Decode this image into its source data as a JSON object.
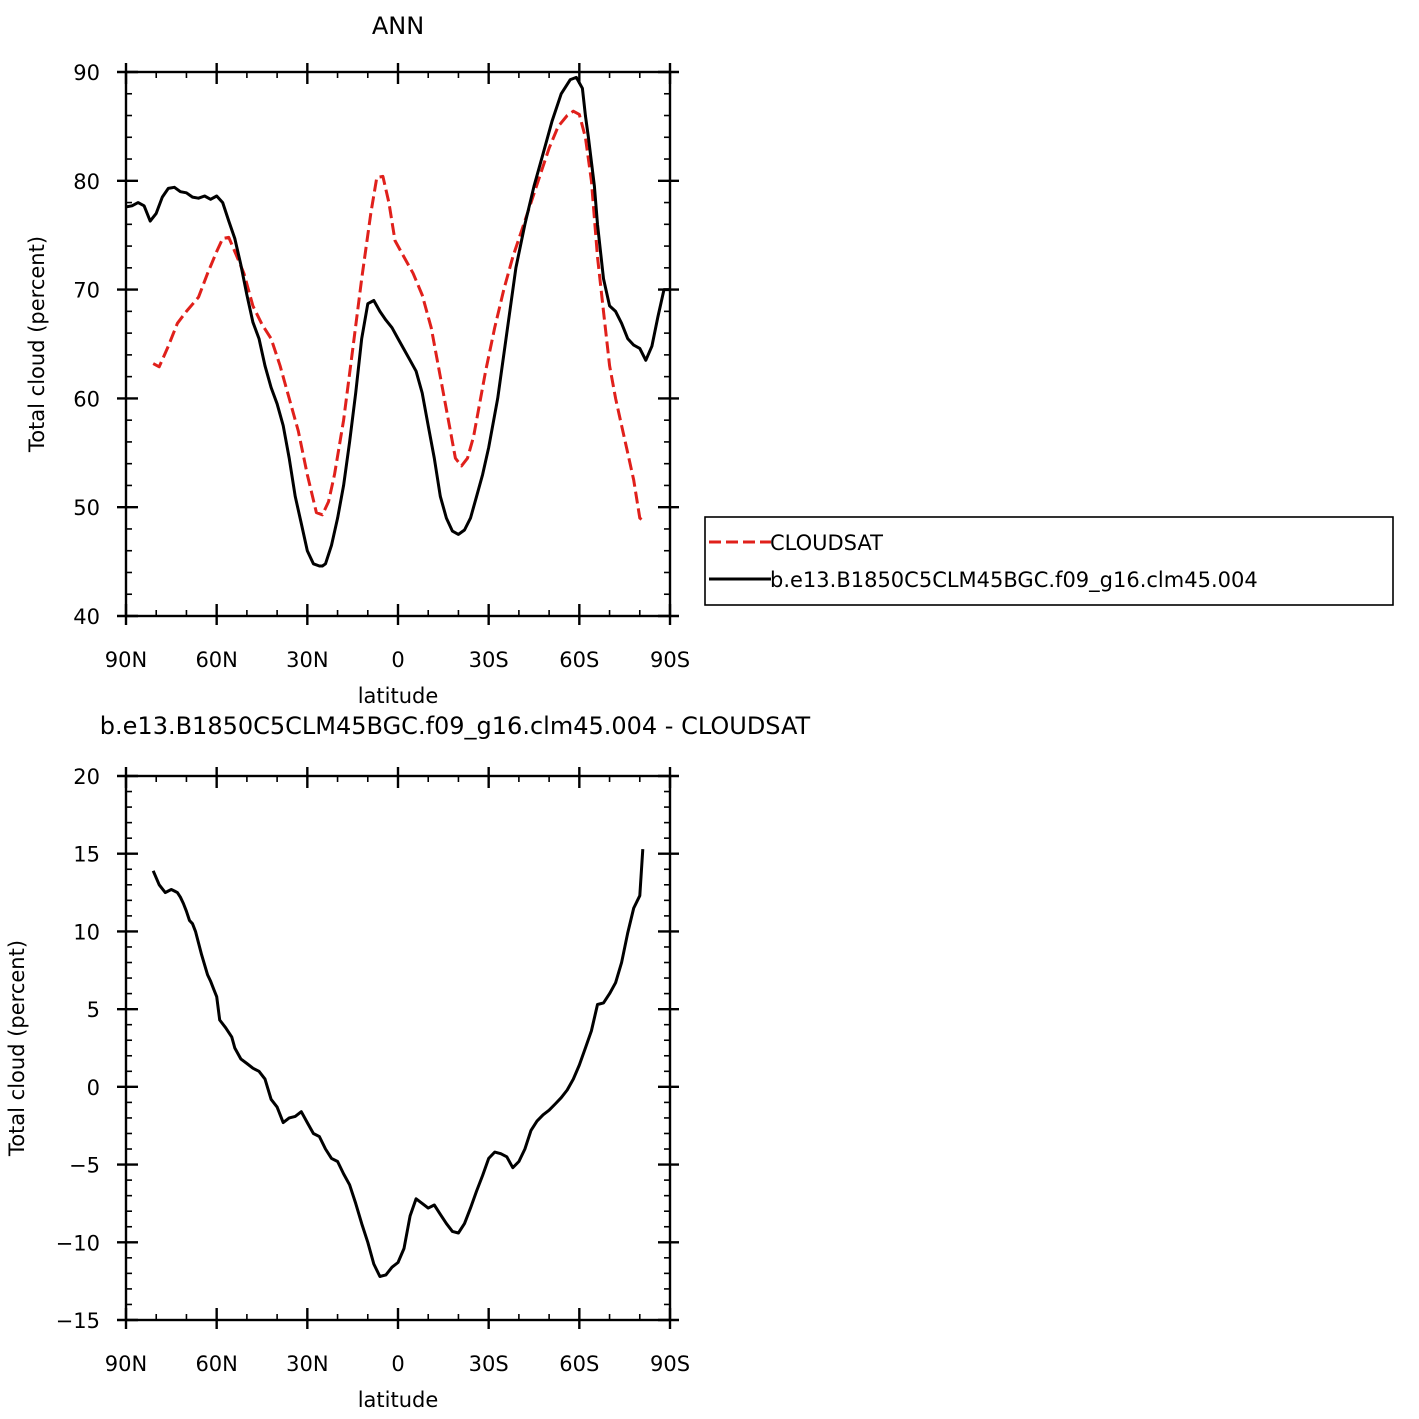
{
  "chart_data": [
    {
      "type": "line",
      "title": "ANN",
      "xlabel": "latitude",
      "ylabel": "Total cloud (percent)",
      "xlim": [
        90,
        -90
      ],
      "ylim": [
        40,
        90
      ],
      "x_ticks": [
        90,
        60,
        30,
        0,
        -30,
        -60,
        -90
      ],
      "x_tick_labels": [
        "90N",
        "60N",
        "30N",
        "0",
        "30S",
        "60S",
        "90S"
      ],
      "y_ticks": [
        40,
        50,
        60,
        70,
        80,
        90
      ],
      "y_tick_labels": [
        "40",
        "50",
        "60",
        "70",
        "80",
        "90"
      ],
      "legend_position": "right",
      "series": [
        {
          "name": "CLOUDSAT",
          "color": "#e0201b",
          "dash": "dashed",
          "x": [
            81,
            79,
            76,
            73,
            70,
            66,
            63,
            60,
            58,
            56,
            54,
            51,
            48,
            45,
            42,
            39,
            36,
            33,
            30,
            27,
            25,
            23,
            21,
            18,
            15,
            12,
            9,
            7,
            5,
            3,
            1,
            -2,
            -5,
            -8,
            -11,
            -14,
            -17,
            -19,
            -21,
            -23,
            -25,
            -27,
            -29,
            -32,
            -35,
            -38,
            -41,
            -44,
            -47,
            -50,
            -53,
            -56,
            -58,
            -60,
            -62,
            -64,
            -66,
            -68,
            -70,
            -72,
            -74,
            -76,
            -78,
            -80,
            -81
          ],
          "y": [
            63.2,
            62.9,
            64.8,
            66.9,
            68.0,
            69.3,
            71.5,
            73.5,
            74.7,
            74.8,
            73.5,
            71.5,
            68.5,
            66.8,
            65.5,
            63.0,
            60.0,
            57.0,
            53.0,
            49.5,
            49.3,
            50.5,
            53.0,
            58.0,
            64.5,
            71.0,
            77.0,
            80.3,
            80.4,
            78.0,
            74.5,
            73.0,
            71.5,
            69.5,
            66.5,
            62.0,
            57.5,
            54.5,
            53.8,
            54.5,
            56.5,
            59.5,
            62.5,
            66.5,
            70.0,
            73.0,
            75.5,
            78.0,
            80.5,
            83.0,
            85.0,
            86.0,
            86.4,
            86.1,
            84.0,
            80.0,
            73.0,
            68.0,
            63.0,
            60.0,
            57.5,
            55.0,
            52.5,
            49.0,
            48.8
          ]
        },
        {
          "name": "b.e13.B1850C5CLM45BGC.f09_g16.clm45.004",
          "color": "#000000",
          "dash": "solid",
          "x": [
            90,
            88,
            86,
            84,
            82,
            80,
            78,
            76,
            74,
            72,
            70,
            68,
            66,
            64,
            62,
            60,
            58,
            56,
            54,
            52,
            50,
            48,
            46,
            44,
            42,
            40,
            38,
            36,
            34,
            32,
            30,
            28,
            26,
            25,
            24,
            22,
            20,
            18,
            16,
            14,
            12,
            10,
            8,
            6,
            4,
            2,
            0,
            -2,
            -4,
            -6,
            -8,
            -10,
            -12,
            -14,
            -16,
            -18,
            -20,
            -22,
            -24,
            -26,
            -28,
            -30,
            -33,
            -36,
            -39,
            -42,
            -45,
            -48,
            -51,
            -54,
            -57,
            -59,
            -61,
            -62,
            -63,
            -65,
            -66,
            -68,
            -70,
            -72,
            -74,
            -76,
            -78,
            -80,
            -82,
            -84,
            -86,
            -88,
            -90
          ],
          "y": [
            77.6,
            77.7,
            78.0,
            77.7,
            76.3,
            77.0,
            78.5,
            79.3,
            79.4,
            79.0,
            78.9,
            78.5,
            78.4,
            78.6,
            78.3,
            78.6,
            78.0,
            76.3,
            74.7,
            72.3,
            69.5,
            67.0,
            65.5,
            63.0,
            61.0,
            59.5,
            57.5,
            54.5,
            51.0,
            48.5,
            46.0,
            44.8,
            44.6,
            44.6,
            44.8,
            46.5,
            49.0,
            52.0,
            56.0,
            60.5,
            65.5,
            68.7,
            69.0,
            68.0,
            67.2,
            66.5,
            65.5,
            64.5,
            63.5,
            62.5,
            60.5,
            57.5,
            54.5,
            51.0,
            49.0,
            47.8,
            47.5,
            47.9,
            49.0,
            51.0,
            53.0,
            55.5,
            60.0,
            66.0,
            72.0,
            76.0,
            79.5,
            82.5,
            85.5,
            88.0,
            89.3,
            89.5,
            88.5,
            86.0,
            84.0,
            79.5,
            76.0,
            71.0,
            68.5,
            68.0,
            66.9,
            65.5,
            64.9,
            64.6,
            63.5,
            64.8,
            67.5,
            70.0,
            70.0
          ]
        }
      ]
    },
    {
      "type": "line",
      "title": "b.e13.B1850C5CLM45BGC.f09_g16.clm45.004 - CLOUDSAT",
      "xlabel": "latitude",
      "ylabel": "Total cloud (percent)",
      "xlim": [
        90,
        -90
      ],
      "ylim": [
        -15,
        20
      ],
      "x_ticks": [
        90,
        60,
        30,
        0,
        -30,
        -60,
        -90
      ],
      "x_tick_labels": [
        "90N",
        "60N",
        "30N",
        "0",
        "30S",
        "60S",
        "90S"
      ],
      "y_ticks": [
        -15,
        -10,
        -5,
        0,
        5,
        10,
        15,
        20
      ],
      "y_tick_labels": [
        "−15",
        "−10",
        "−5",
        "0",
        "5",
        "10",
        "15",
        "20"
      ],
      "series": [
        {
          "color": "#000000",
          "dash": "solid",
          "x": [
            81,
            79,
            77,
            76,
            75,
            74,
            73,
            72,
            71,
            70,
            69,
            68,
            67,
            65,
            63,
            62,
            61,
            60,
            59,
            57,
            55,
            54,
            52,
            50,
            48,
            46,
            44,
            42,
            40,
            38,
            36,
            34,
            32,
            30,
            28,
            26,
            24,
            22,
            20,
            18,
            16,
            14,
            12,
            10,
            8,
            6,
            4,
            2,
            0,
            -2,
            -4,
            -6,
            -8,
            -10,
            -12,
            -14,
            -16,
            -18,
            -20,
            -22,
            -24,
            -26,
            -28,
            -30,
            -32,
            -34,
            -36,
            -38,
            -40,
            -42,
            -44,
            -46,
            -48,
            -50,
            -52,
            -54,
            -56,
            -58,
            -60,
            -62,
            -64,
            -66,
            -68,
            -70,
            -72,
            -74,
            -76,
            -78,
            -80,
            -81
          ],
          "y": [
            13.9,
            13.0,
            12.5,
            12.6,
            12.7,
            12.6,
            12.5,
            12.2,
            11.8,
            11.3,
            10.7,
            10.5,
            10.0,
            8.5,
            7.2,
            6.8,
            6.3,
            5.8,
            4.3,
            3.8,
            3.2,
            2.5,
            1.8,
            1.5,
            1.2,
            1.0,
            0.5,
            -0.8,
            -1.3,
            -2.3,
            -2.0,
            -1.9,
            -1.6,
            -2.3,
            -3.0,
            -3.2,
            -4.0,
            -4.6,
            -4.8,
            -5.6,
            -6.3,
            -7.5,
            -8.8,
            -10.0,
            -11.4,
            -12.2,
            -12.1,
            -11.6,
            -11.3,
            -10.4,
            -8.3,
            -7.2,
            -7.5,
            -7.8,
            -7.6,
            -8.2,
            -8.8,
            -9.3,
            -9.4,
            -8.8,
            -7.8,
            -6.7,
            -5.7,
            -4.6,
            -4.2,
            -4.3,
            -4.5,
            -5.2,
            -4.8,
            -4.0,
            -2.8,
            -2.2,
            -1.8,
            -1.5,
            -1.1,
            -0.7,
            -0.2,
            0.5,
            1.4,
            2.5,
            3.6,
            5.3,
            5.4,
            6.0,
            6.7,
            8.0,
            9.9,
            11.5,
            12.3,
            15.3
          ]
        }
      ]
    }
  ]
}
